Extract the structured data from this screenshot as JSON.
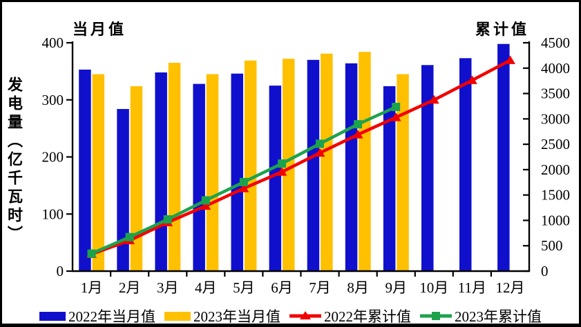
{
  "frame": {
    "background_color": "#FFFFFF",
    "border_color": "#000000"
  },
  "chart_data": {
    "type": "bar",
    "subtype": "combo-bar-line-dual-axis",
    "title": "",
    "left_axis_header": "当月值",
    "right_axis_header": "累计值",
    "grid": false,
    "legend_position": "bottom",
    "categories": [
      "1月",
      "2月",
      "3月",
      "4月",
      "5月",
      "6月",
      "7月",
      "8月",
      "9月",
      "10月",
      "11月",
      "12月"
    ],
    "y_left": {
      "label": "发电量（亿千瓦时）",
      "min": 0,
      "max": 400,
      "step": 100,
      "tick_labels": [
        "0",
        "100",
        "200",
        "300",
        "400"
      ]
    },
    "y_right": {
      "label": "",
      "min": 0,
      "max": 4500,
      "step": 500,
      "tick_labels": [
        "0",
        "500",
        "1000",
        "1500",
        "2000",
        "2500",
        "3000",
        "3500",
        "4000",
        "4500"
      ]
    },
    "series": [
      {
        "name": "2022年当月值",
        "type": "bar",
        "axis": "left",
        "color": "#1010CC",
        "marker": "none",
        "values": [
          353,
          284,
          348,
          328,
          346,
          325,
          370,
          364,
          324,
          361,
          373,
          398
        ]
      },
      {
        "name": "2023年当月值",
        "type": "bar",
        "axis": "left",
        "color": "#FFC000",
        "marker": "none",
        "values": [
          345,
          324,
          365,
          345,
          369,
          372,
          381,
          384,
          345
        ]
      },
      {
        "name": "2022年累计值",
        "type": "line",
        "axis": "right",
        "color": "#F20000",
        "marker": "triangle",
        "values": [
          335,
          605,
          960,
          1285,
          1630,
          1955,
          2330,
          2690,
          3030,
          3375,
          3760,
          4155
        ]
      },
      {
        "name": "2023年累计值",
        "type": "line",
        "axis": "right",
        "color": "#1CA24E",
        "marker": "square",
        "values": [
          345,
          670,
          1020,
          1395,
          1755,
          2120,
          2510,
          2895,
          3235
        ]
      }
    ]
  }
}
